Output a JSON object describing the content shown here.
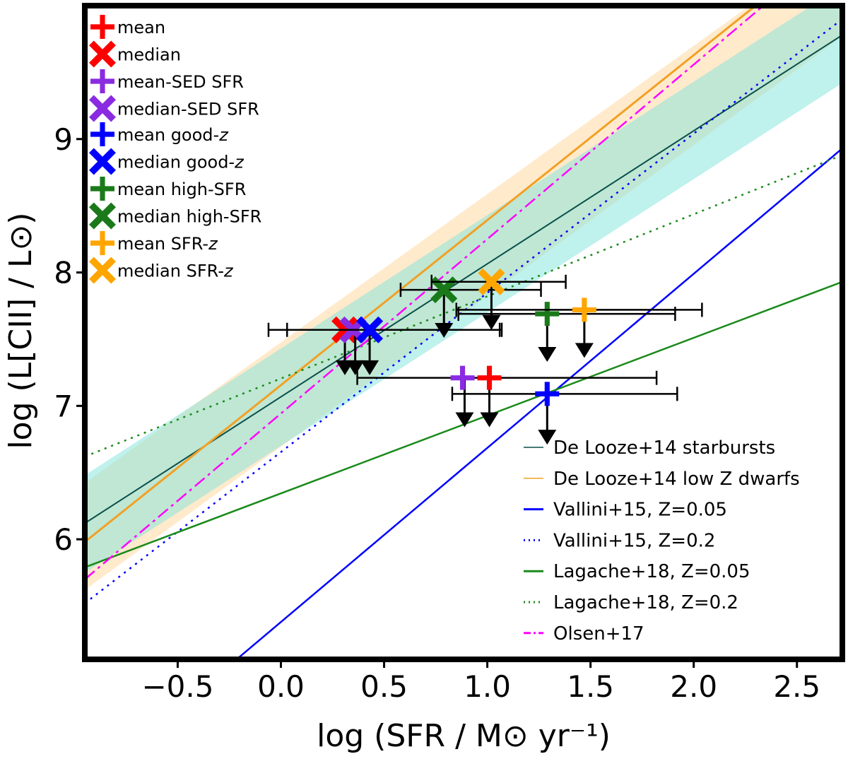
{
  "chart_data": {
    "type": "scatter",
    "xlabel": "log (SFR / M⊙ yr⁻¹)",
    "ylabel": "log (L[CII] / L⊙)",
    "xlim": [
      -0.95,
      2.72
    ],
    "ylim": [
      5.1,
      10.0
    ],
    "x_ticks": [
      -0.5,
      0.0,
      0.5,
      1.0,
      1.5,
      2.0,
      2.5
    ],
    "x_tick_labels": [
      "−0.5",
      "0.0",
      "0.5",
      "1.0",
      "1.5",
      "2.0",
      "2.5"
    ],
    "y_ticks": [
      6,
      7,
      8,
      9
    ],
    "y_tick_labels": [
      "6",
      "7",
      "8",
      "9"
    ],
    "bands": [
      {
        "color": "#ffdcaa",
        "opacity": 0.6,
        "x": [
          -0.95,
          2.72
        ],
        "lower": [
          5.62,
          9.77
        ],
        "upper": [
          6.42,
          10.5
        ]
      },
      {
        "color": "#7fe4dc",
        "opacity": 0.5,
        "x": [
          -0.95,
          2.72
        ],
        "lower": [
          5.75,
          9.42
        ],
        "upper": [
          6.48,
          10.15
        ]
      }
    ],
    "relations": [
      {
        "name": "De Looze+14 starbursts",
        "color": "#0a4f4a",
        "style": "solid",
        "width": 2,
        "x": [
          -0.95,
          2.72
        ],
        "y": [
          6.12,
          9.78
        ]
      },
      {
        "name": "De Looze+14 low Z dwarfs",
        "color": "#f2a024",
        "style": "solid",
        "width": 3,
        "x": [
          -0.95,
          2.72
        ],
        "y": [
          5.98,
          10.52
        ]
      },
      {
        "name": "Vallini+15, Z=0.05",
        "color": "#0000ff",
        "style": "solid",
        "width": 2.5,
        "x": [
          -0.95,
          2.72
        ],
        "y": [
          4.14,
          8.93
        ]
      },
      {
        "name": "Vallini+15, Z=0.2",
        "color": "#0000ff",
        "style": "dotted",
        "width": 2.5,
        "x": [
          -0.95,
          2.72
        ],
        "y": [
          5.52,
          9.9
        ]
      },
      {
        "name": "Lagache+18, Z=0.05",
        "color": "#1a8a1a",
        "style": "solid",
        "width": 2.5,
        "x": [
          -0.95,
          2.72
        ],
        "y": [
          5.79,
          7.93
        ]
      },
      {
        "name": "Lagache+18, Z=0.2",
        "color": "#1a8a1a",
        "style": "dotted",
        "width": 2.5,
        "x": [
          -0.95,
          2.72
        ],
        "y": [
          6.62,
          8.88
        ]
      },
      {
        "name": "Olsen+17",
        "color": "#ff00ff",
        "style": "dashdot",
        "width": 2.5,
        "x": [
          -0.95,
          2.72
        ],
        "y": [
          5.7,
          10.5
        ]
      }
    ],
    "points": [
      {
        "name": "mean",
        "marker": "plus",
        "color": "#ff0000",
        "x": 1.01,
        "y": 7.21,
        "xerr": [
          0.64,
          0.81
        ],
        "arrow_x": 1.01,
        "arrow_y": 6.93
      },
      {
        "name": "median",
        "marker": "x",
        "color": "#ff0000",
        "x": 0.31,
        "y": 7.57,
        "xerr": [
          0.37,
          0.75
        ],
        "arrow_x": 0.31,
        "arrow_y": 7.32
      },
      {
        "name": "mean-SED SFR",
        "marker": "plus",
        "color": "#8a2be2",
        "x": 0.88,
        "y": 7.21,
        "xerr": [
          0.0,
          0.0
        ],
        "arrow_x": 0.89,
        "arrow_y": 6.93
      },
      {
        "name": "median-SED SFR",
        "marker": "x",
        "color": "#8a2be2",
        "x": 0.35,
        "y": 7.57,
        "xerr": [
          0.0,
          0.0
        ],
        "arrow_x": 0.36,
        "arrow_y": 7.32
      },
      {
        "name": "mean good-z",
        "marker": "plus",
        "color": "#0000ff",
        "x": 1.29,
        "y": 7.09,
        "xerr": [
          0.46,
          0.63
        ],
        "arrow_x": 1.29,
        "arrow_y": 6.8
      },
      {
        "name": "median good-z",
        "marker": "x",
        "color": "#0000ff",
        "x": 0.43,
        "y": 7.57,
        "xerr": [
          0.4,
          0.64
        ],
        "arrow_x": 0.43,
        "arrow_y": 7.32
      },
      {
        "name": "mean high-SFR",
        "marker": "plus",
        "color": "#1a7a1a",
        "x": 1.29,
        "y": 7.69,
        "xerr": [
          0.43,
          0.62
        ],
        "arrow_x": 1.29,
        "arrow_y": 7.42
      },
      {
        "name": "median high-SFR",
        "marker": "x",
        "color": "#1a7a1a",
        "x": 0.79,
        "y": 7.87,
        "xerr": [
          0.21,
          0.47
        ],
        "arrow_x": 0.79,
        "arrow_y": 7.6
      },
      {
        "name": "mean SFR-z",
        "marker": "plus",
        "color": "#ffa500",
        "x": 1.47,
        "y": 7.72,
        "xerr": [
          0.62,
          0.57
        ],
        "arrow_x": 1.47,
        "arrow_y": 7.45
      },
      {
        "name": "median SFR-z",
        "marker": "x",
        "color": "#ffa500",
        "x": 1.02,
        "y": 7.93,
        "xerr": [
          0.29,
          0.36
        ],
        "arrow_x": 1.02,
        "arrow_y": 7.66
      }
    ],
    "legend_left": [
      {
        "label": "mean",
        "marker": "plus",
        "color": "#ff0000"
      },
      {
        "label": "median",
        "marker": "x",
        "color": "#ff0000"
      },
      {
        "label": "mean-SED SFR",
        "marker": "plus",
        "color": "#8a2be2"
      },
      {
        "label": "median-SED SFR",
        "marker": "x",
        "color": "#8a2be2"
      },
      {
        "label": "mean good-",
        "italic": "z",
        "marker": "plus",
        "color": "#0000ff"
      },
      {
        "label": "median good-",
        "italic": "z",
        "marker": "x",
        "color": "#0000ff"
      },
      {
        "label": "mean high-SFR",
        "marker": "plus",
        "color": "#1a7a1a"
      },
      {
        "label": "median high-SFR",
        "marker": "x",
        "color": "#1a7a1a"
      },
      {
        "label": "mean SFR-",
        "italic": "z",
        "marker": "plus",
        "color": "#ffa500"
      },
      {
        "label": "median SFR-",
        "italic": "z",
        "marker": "x",
        "color": "#ffa500"
      }
    ],
    "legend_right": [
      {
        "label": "De Looze+14 starbursts",
        "color": "#0a4f4a",
        "style": "solid"
      },
      {
        "label": "De Looze+14 low Z dwarfs",
        "color": "#f2a024",
        "style": "solid"
      },
      {
        "label": "Vallini+15, Z=0.05",
        "color": "#0000ff",
        "style": "solid"
      },
      {
        "label": "Vallini+15, Z=0.2",
        "color": "#0000ff",
        "style": "dotted"
      },
      {
        "label": "Lagache+18, Z=0.05",
        "color": "#1a8a1a",
        "style": "solid"
      },
      {
        "label": "Lagache+18, Z=0.2",
        "color": "#1a8a1a",
        "style": "dotted"
      },
      {
        "label": "Olsen+17",
        "color": "#ff00ff",
        "style": "dashdot"
      }
    ]
  }
}
